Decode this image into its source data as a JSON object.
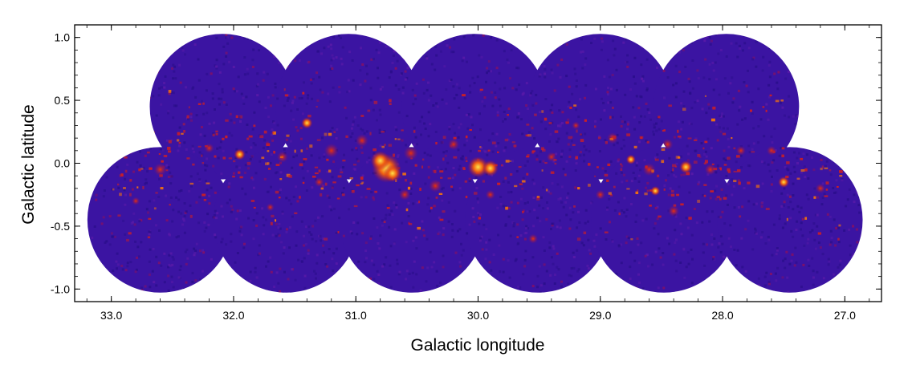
{
  "figure": {
    "xlabel": "Galactic longitude",
    "ylabel": "Galactic latitude",
    "x_ticks": [
      "33.0",
      "32.0",
      "31.0",
      "30.0",
      "29.0",
      "28.0",
      "27.0"
    ],
    "y_ticks": [
      "1.0",
      "0.5",
      "0.0",
      "-0.5",
      "-1.0"
    ],
    "x_range": [
      33.3,
      26.7
    ],
    "y_range": [
      -1.1,
      1.1
    ],
    "colors": {
      "background": "#3b14a2",
      "low": "#2a0e8a",
      "mid": "#8a1060",
      "high": "#d92a0d",
      "peak": "#ffd21a"
    },
    "colormap": "blue-red-yellow heat map",
    "fields": [
      {
        "l": 32.09,
        "b": 0.45
      },
      {
        "l": 31.06,
        "b": 0.45
      },
      {
        "l": 30.03,
        "b": 0.45
      },
      {
        "l": 29.0,
        "b": 0.45
      },
      {
        "l": 27.97,
        "b": 0.45
      },
      {
        "l": 32.6,
        "b": -0.45
      },
      {
        "l": 31.57,
        "b": -0.45
      },
      {
        "l": 30.54,
        "b": -0.45
      },
      {
        "l": 29.51,
        "b": -0.45
      },
      {
        "l": 28.48,
        "b": -0.45
      },
      {
        "l": 27.45,
        "b": -0.45
      }
    ],
    "field_radius_deg": 0.6
  }
}
